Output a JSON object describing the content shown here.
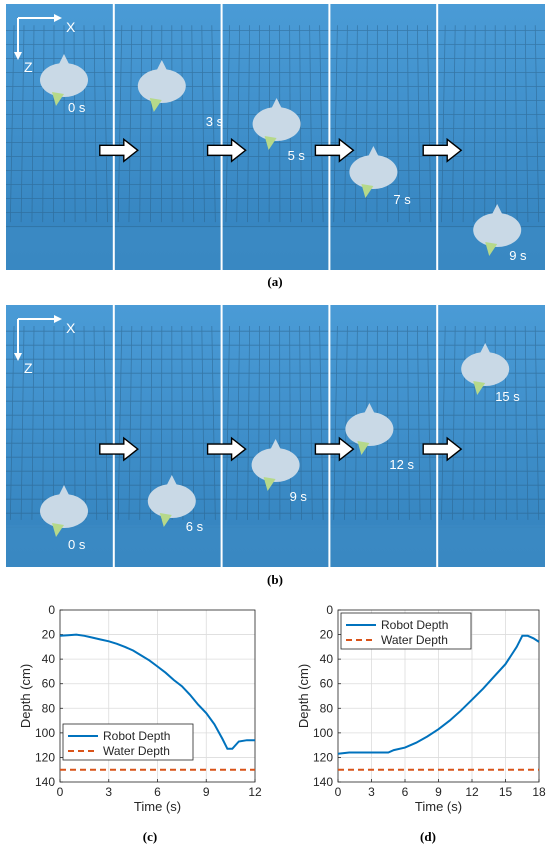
{
  "panel_a": {
    "caption": "(a)",
    "axis_x_label": "X",
    "axis_z_label": "Z",
    "frame_times": [
      "0 s",
      "3 s",
      "5 s",
      "7 s",
      "9 s"
    ]
  },
  "panel_b": {
    "caption": "(b)",
    "axis_x_label": "X",
    "axis_z_label": "Z",
    "frame_times": [
      "0 s",
      "6 s",
      "9 s",
      "12 s",
      "15 s"
    ]
  },
  "colors": {
    "robot_depth": "#0072BD",
    "water_depth": "#D95319",
    "pool_water": "#3d8fc9"
  },
  "chart_data": [
    {
      "caption": "(c)",
      "type": "line",
      "xlabel": "Time (s)",
      "ylabel": "Depth (cm)",
      "xlim": [
        0,
        12
      ],
      "ylim": [
        0,
        140
      ],
      "y_reversed": true,
      "xticks": [
        0,
        3,
        6,
        9,
        12
      ],
      "yticks": [
        0,
        20,
        40,
        60,
        80,
        100,
        120,
        140
      ],
      "grid": true,
      "legend_position": "bottom-left",
      "series": [
        {
          "name": "Robot Depth",
          "style": "solid",
          "x": [
            0,
            0.5,
            1,
            1.5,
            2,
            2.5,
            3,
            3.5,
            4,
            4.5,
            5,
            5.5,
            6,
            6.5,
            7,
            7.5,
            8,
            8.5,
            9,
            9.5,
            10,
            10.3,
            10.6,
            11,
            11.5,
            12
          ],
          "y": [
            21,
            20.5,
            20,
            21,
            22.5,
            24,
            25.5,
            27.5,
            30,
            33,
            37,
            41,
            46,
            51,
            57,
            62,
            69,
            77,
            84,
            93,
            105,
            113,
            113,
            107,
            106,
            106
          ]
        },
        {
          "name": "Water Depth",
          "style": "dashed",
          "x": [
            0,
            12
          ],
          "y": [
            130,
            130
          ]
        }
      ]
    },
    {
      "caption": "(d)",
      "type": "line",
      "xlabel": "Time (s)",
      "ylabel": "Depth (cm)",
      "xlim": [
        0,
        18
      ],
      "ylim": [
        0,
        140
      ],
      "y_reversed": true,
      "xticks": [
        0,
        3,
        6,
        9,
        12,
        15,
        18
      ],
      "yticks": [
        0,
        20,
        40,
        60,
        80,
        100,
        120,
        140
      ],
      "grid": true,
      "legend_position": "top-left",
      "series": [
        {
          "name": "Robot Depth",
          "style": "solid",
          "x": [
            0,
            1,
            2,
            3,
            4,
            4.5,
            5,
            6,
            7,
            8,
            9,
            10,
            11,
            12,
            13,
            14,
            15,
            15.5,
            16,
            16.5,
            17,
            17.5,
            18
          ],
          "y": [
            117,
            116,
            116,
            116,
            116,
            116,
            114,
            112,
            108,
            103,
            97,
            90,
            82,
            73,
            64,
            54,
            44,
            37,
            30,
            21,
            21,
            23,
            26
          ]
        },
        {
          "name": "Water Depth",
          "style": "dashed",
          "x": [
            0,
            18
          ],
          "y": [
            130,
            130
          ]
        }
      ]
    }
  ]
}
